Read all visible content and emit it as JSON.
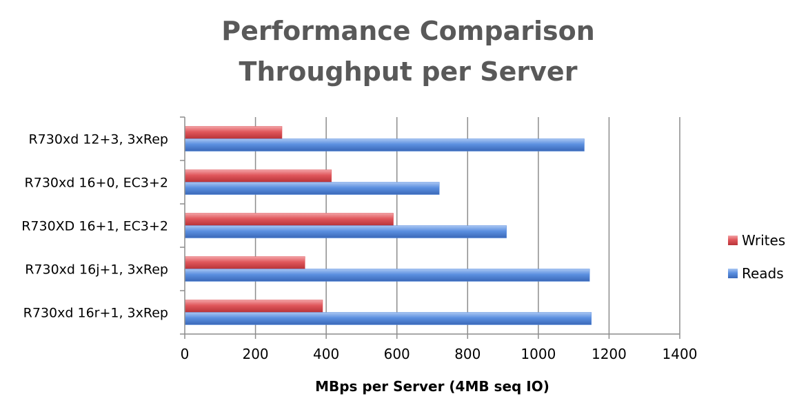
{
  "chart_data": {
    "type": "bar",
    "orientation": "horizontal",
    "title": [
      "Performance Comparison",
      "Throughput per Server"
    ],
    "xlabel": "MBps per Server (4MB seq IO)",
    "ylabel": "",
    "xlim": [
      0,
      1400
    ],
    "xticks": [
      0,
      200,
      400,
      600,
      800,
      1000,
      1200,
      1400
    ],
    "grid": true,
    "legend_position": "right",
    "categories": [
      "R730xd 12+3, 3xRep",
      "R730xd 16+0, EC3+2",
      "R730XD 16+1, EC3+2",
      "R730xd 16j+1, 3xRep",
      "R730xd 16r+1, 3xRep"
    ],
    "series": [
      {
        "name": "Writes",
        "color": "#e0565b",
        "values": [
          275,
          415,
          590,
          340,
          390
        ]
      },
      {
        "name": "Reads",
        "color": "#5b8fe0",
        "values": [
          1130,
          720,
          910,
          1145,
          1150
        ]
      }
    ]
  }
}
